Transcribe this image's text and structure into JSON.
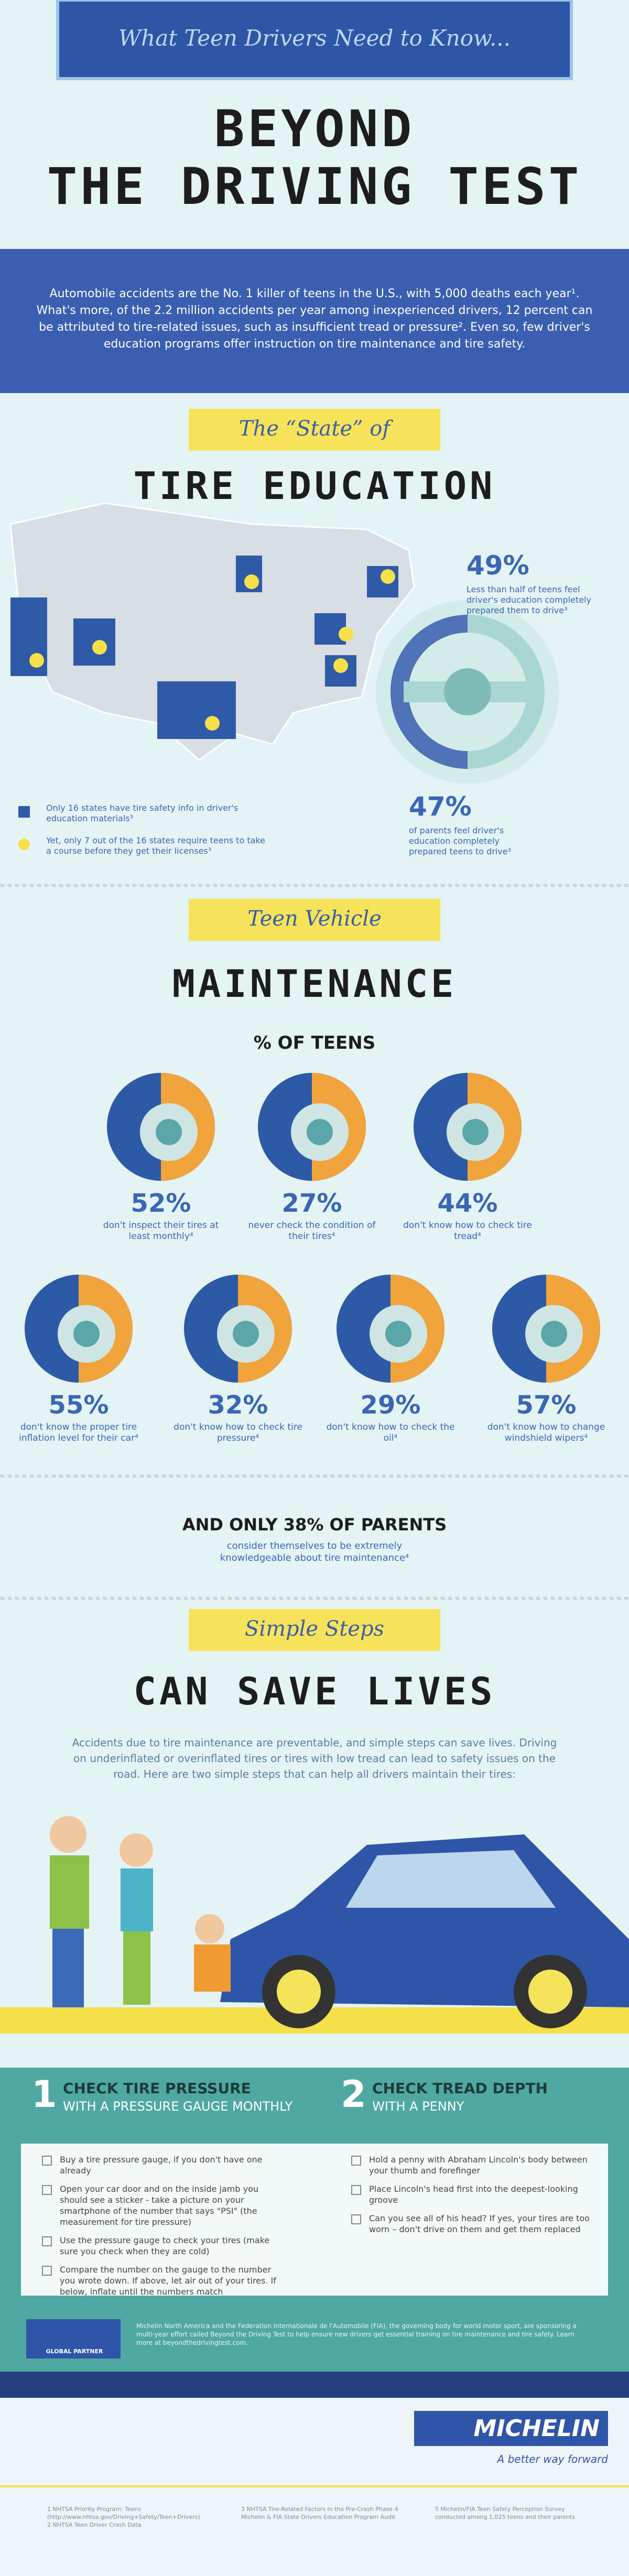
{
  "header": {
    "kicker": "What Teen Drivers Need to Know...",
    "title_line1": "BEYOND",
    "title_line2": "THE DRIVING TEST"
  },
  "intro": "Automobile accidents are the No. 1 killer of teens in the U.S., with 5,000 deaths each year¹. What's more, of the 2.2 million accidents per year among inexperienced drivers, 12 percent can be attributed to tire-related issues, such as insufficient tread or pressure². Even so, few driver's education programs offer instruction on tire maintenance and tire safety.",
  "education": {
    "ribbon": "The “State” of",
    "title": "TIRE EDUCATION",
    "teens_stat": "49%",
    "teens_caption": "Less than half of teens feel driver's education completely prepared them to drive³",
    "parents_stat": "47%",
    "parents_caption": "of parents feel driver's education completely prepared teens to drive³",
    "legend": [
      "Only 16 states have tire safety info in driver's education materials³",
      "Yet, only 7 out of the 16 states require teens to take a course before they get their licenses³"
    ]
  },
  "maintenance": {
    "ribbon": "Teen Vehicle",
    "title": "MAINTENANCE",
    "subtitle": "% OF TEENS",
    "stats": [
      {
        "value": "52%",
        "caption": "don't inspect their tires at least monthly⁴"
      },
      {
        "value": "27%",
        "caption": "never check the condition of their tires⁴"
      },
      {
        "value": "44%",
        "caption": "don't know how to check tire tread⁴"
      },
      {
        "value": "55%",
        "caption": "don't know the proper tire inflation level for their car⁴"
      },
      {
        "value": "32%",
        "caption": "don't know how to check tire pressure⁴"
      },
      {
        "value": "29%",
        "caption": "don't know how to check the oil⁴"
      },
      {
        "value": "57%",
        "caption": "don't know how to change windshield wipers⁴"
      }
    ],
    "parents_heading": "AND ONLY 38% OF PARENTS",
    "parents_caption": "consider themselves to be extremely knowledgeable about tire maintenance⁴"
  },
  "steps": {
    "ribbon": "Simple Steps",
    "title": "CAN SAVE LIVES",
    "paragraph": "Accidents due to tire maintenance are preventable, and simple steps can save lives. Driving on underinflated or overinflated tires or tires with low tread can lead to safety issues on the road. Here are two simple steps that can help all drivers maintain their tires:",
    "columns": [
      {
        "number": "1",
        "heading": "CHECK TIRE PRESSURE",
        "subheading": "WITH A PRESSURE GAUGE MONTHLY",
        "items": [
          "Buy a tire pressure gauge, if you don't have one already",
          "Open your car door and on the inside jamb you should see a sticker - take a picture on your smartphone of the number that says \"PSI\" (the measurement for tire pressure)",
          "Use the pressure gauge to check your tires (make sure you check when they are cold)",
          "Compare the number on the gauge to the number you wrote down. If above, let air out of your tires. If below, inflate until the numbers match"
        ]
      },
      {
        "number": "2",
        "heading": "CHECK TREAD DEPTH",
        "subheading": "WITH A PENNY",
        "items": [
          "Hold a penny with Abraham Lincoln's body between your thumb and forefinger",
          "Place Lincoln's head first into the deepest-looking groove",
          "Can you see all of his head? If yes, your tires are too worn – don't drive on them and get them replaced"
        ]
      }
    ]
  },
  "footer": {
    "sponsor_text": "Michelin North America and the Federation Internationale de l'Automobile (FIA), the governing body for world motor sport, are sponsoring a multi-year effort called Beyond the Driving Test to help ensure new drivers get essential training on tire maintenance and tire safety. Learn more at beyondthedrivingtest.com.",
    "partner_label": "GLOBAL PARTNER",
    "brand": "MICHELIN",
    "tagline": "A better way forward",
    "footnotes": [
      "1 NHTSA Priority Program: Teens (http://www.nhtsa.gov/Driving+Safety/Teen+Drivers) 2 NHTSA Teen Driver Crash Data",
      "3 NHTSA Tire-Related Factors in the Pre-Crash Phase 4 Michelin & FIA State Drivers Education Program Audit",
      "5 Michelin/FIA Teen Safety Perception Survey conducted among 1,025 teens and their parents"
    ]
  }
}
